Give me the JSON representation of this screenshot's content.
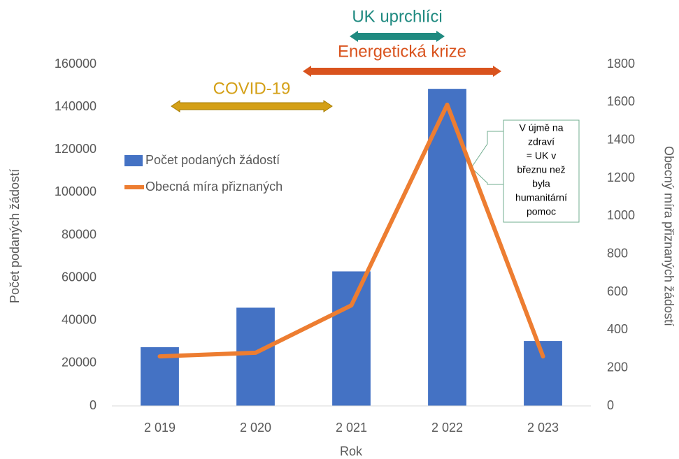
{
  "chart_data": {
    "type": "bar-line",
    "categories": [
      "2 019",
      "2 020",
      "2 021",
      "2 022",
      "2 023"
    ],
    "series": [
      {
        "name": "Počet podaných žádostí",
        "type": "bar",
        "color": "#4472c4",
        "values": [
          27500,
          46000,
          63000,
          148500,
          30400
        ]
      },
      {
        "name": "Obecná míra přiznaných",
        "type": "line",
        "axis": "y2",
        "color": "#ed7d31",
        "values": [
          261,
          280,
          530,
          1587,
          261
        ]
      }
    ],
    "ylim": [
      0,
      160000
    ],
    "yticks": [
      0,
      20000,
      40000,
      60000,
      80000,
      100000,
      120000,
      140000,
      160000
    ],
    "y2lim": [
      0,
      1800
    ],
    "y2ticks": [
      0,
      200,
      400,
      600,
      800,
      1000,
      1200,
      1400,
      1600,
      1800
    ],
    "xlabel": "Rok",
    "ylabel": "Počet podaných žádostí",
    "y2label": "Obecný míra přiznaných žádostí",
    "annotations": [
      {
        "text": "UK uprchlíci",
        "color": "#1f8a80"
      },
      {
        "text": "Energetická krize",
        "color": "#d9531e"
      },
      {
        "text": "COVID-19",
        "color": "#d4a017"
      }
    ],
    "callout": [
      "V újmě na",
      "zdraví",
      "= UK v",
      "březnu než",
      "byla",
      "humanitární",
      "pomoc"
    ]
  }
}
